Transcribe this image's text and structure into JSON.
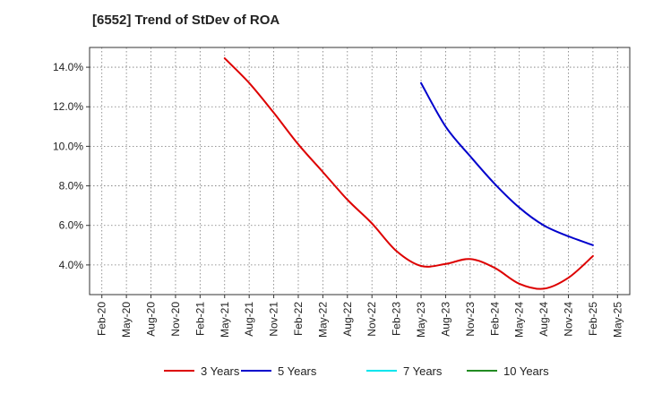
{
  "chart_data": {
    "type": "line",
    "title": "[6552]  Trend of StDev of ROA",
    "xlabel": "",
    "ylabel": "",
    "x_ticks": [
      "Feb-20",
      "May-20",
      "Aug-20",
      "Nov-20",
      "Feb-21",
      "May-21",
      "Aug-21",
      "Nov-21",
      "Feb-22",
      "May-22",
      "Aug-22",
      "Nov-22",
      "Feb-23",
      "May-23",
      "Aug-23",
      "Nov-23",
      "Feb-24",
      "May-24",
      "Aug-24",
      "Nov-24",
      "Feb-25",
      "May-25"
    ],
    "y_ticks": [
      4.0,
      6.0,
      8.0,
      10.0,
      12.0,
      14.0
    ],
    "y_tick_labels": [
      "4.0%",
      "6.0%",
      "8.0%",
      "10.0%",
      "12.0%",
      "14.0%"
    ],
    "ylim": [
      2.5,
      15.0
    ],
    "grid": true,
    "legend_position": "bottom",
    "series": [
      {
        "name": "3 Years",
        "color": "#dd0000",
        "x": [
          "May-21",
          "Aug-21",
          "Nov-21",
          "Feb-22",
          "May-22",
          "Aug-22",
          "Nov-22",
          "Feb-23",
          "May-23",
          "Aug-23",
          "Nov-23",
          "Feb-24",
          "May-24",
          "Aug-24",
          "Nov-24",
          "Feb-25"
        ],
        "values": [
          14.45,
          13.2,
          11.7,
          10.1,
          8.7,
          7.3,
          6.1,
          4.7,
          3.95,
          4.05,
          4.3,
          3.85,
          3.05,
          2.8,
          3.35,
          4.45
        ]
      },
      {
        "name": "5 Years",
        "color": "#0000cc",
        "x": [
          "May-23",
          "Aug-23",
          "Nov-23",
          "Feb-24",
          "May-24",
          "Aug-24",
          "Nov-24",
          "Feb-25"
        ],
        "values": [
          13.2,
          11.0,
          9.5,
          8.1,
          6.9,
          6.0,
          5.45,
          5.0
        ]
      },
      {
        "name": "7 Years",
        "color": "#00e5ee",
        "x": [],
        "values": []
      },
      {
        "name": "10 Years",
        "color": "#228b22",
        "x": [],
        "values": []
      }
    ]
  }
}
